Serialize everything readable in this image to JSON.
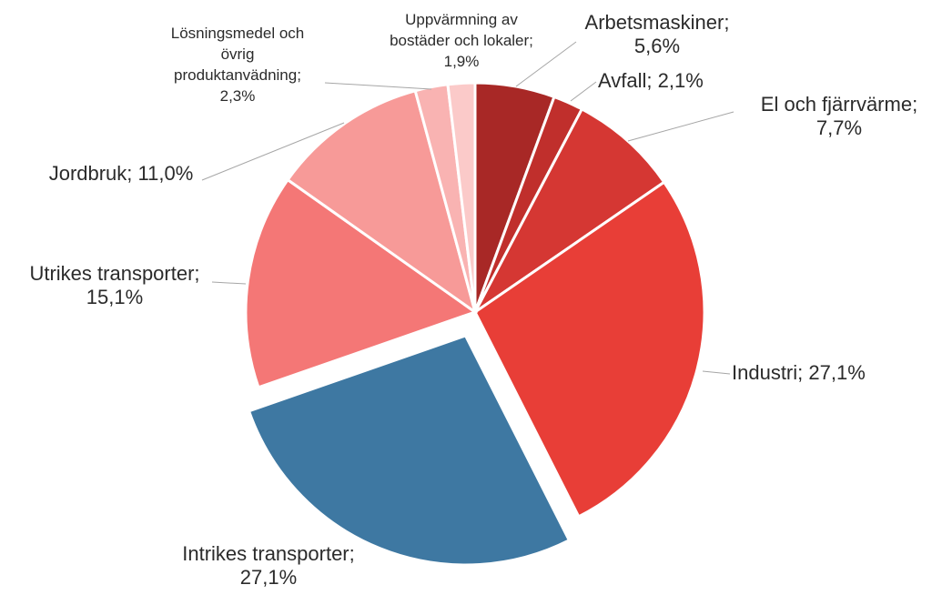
{
  "chart_data": {
    "type": "pie",
    "title": "",
    "start_angle_deg": 0,
    "direction": "clockwise",
    "slices": [
      {
        "label": "Arbetsmaskiner",
        "value": 5.6,
        "value_text": "5,6%",
        "color": "#a82826",
        "label_lines": [
          "Arbetsmaskiner;",
          "5,6%"
        ],
        "exploded": false
      },
      {
        "label": "Avfall",
        "value": 2.1,
        "value_text": "2,1%",
        "color": "#c02f2c",
        "label_lines": [
          "Avfall; 2,1%"
        ],
        "exploded": false
      },
      {
        "label": "El och fjärrvärme",
        "value": 7.7,
        "value_text": "7,7%",
        "color": "#d53733",
        "label_lines": [
          "El och fjärrvärme;",
          "7,7%"
        ],
        "exploded": false
      },
      {
        "label": "Industri",
        "value": 27.1,
        "value_text": "27,1%",
        "color": "#e83e37",
        "label_lines": [
          "Industri; 27,1%"
        ],
        "exploded": false
      },
      {
        "label": "Intrikes transporter",
        "value": 27.1,
        "value_text": "27,1%",
        "color": "#3e78a2",
        "label_lines": [
          "Intrikes transporter;",
          "27,1%"
        ],
        "exploded": true
      },
      {
        "label": "Utrikes transporter",
        "value": 15.1,
        "value_text": "15,1%",
        "color": "#f47776",
        "label_lines": [
          "Utrikes transporter;",
          "15,1%"
        ],
        "exploded": false
      },
      {
        "label": "Jordbruk",
        "value": 11.0,
        "value_text": "11,0%",
        "color": "#f79a98",
        "label_lines": [
          "Jordbruk; 11,0%"
        ],
        "exploded": false
      },
      {
        "label": "Lösningsmedel och övrig produktanvädning",
        "value": 2.3,
        "value_text": "2,3%",
        "color": "#f9b3b2",
        "label_lines": [
          "Lösningsmedel och",
          "övrig",
          "produktanvädning;",
          "2,3%"
        ],
        "exploded": false
      },
      {
        "label": "Uppvärmning av bostäder och lokaler",
        "value": 1.9,
        "value_text": "1,9%",
        "color": "#fbcac9",
        "label_lines": [
          "Uppvärmning av",
          "bostäder och lokaler;",
          "1,9%"
        ],
        "exploded": false
      }
    ]
  }
}
